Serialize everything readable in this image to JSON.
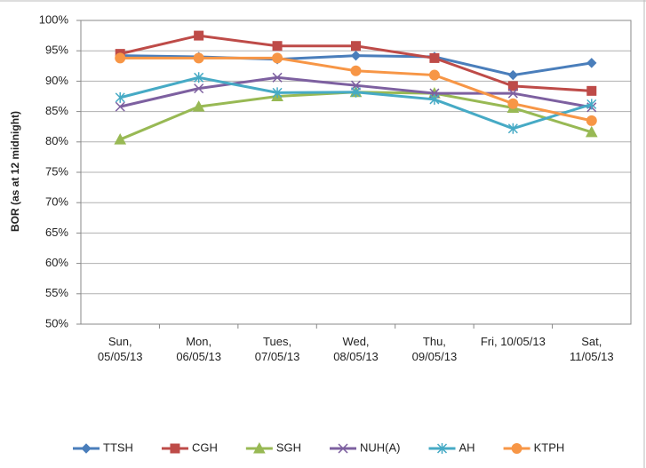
{
  "chart_data": {
    "type": "line",
    "y_label": "BOR (as at 12 midnight)",
    "categories": [
      "Sun, 05/05/13",
      "Mon, 06/05/13",
      "Tues, 07/05/13",
      "Wed, 08/05/13",
      "Thu, 09/05/13",
      "Fri, 10/05/13",
      "Sat, 11/05/13"
    ],
    "ylim": [
      50,
      100
    ],
    "yticks": [
      {
        "value": 50,
        "label": "50%"
      },
      {
        "value": 55,
        "label": "55%"
      },
      {
        "value": 60,
        "label": "60%"
      },
      {
        "value": 65,
        "label": "65%"
      },
      {
        "value": 70,
        "label": "70%"
      },
      {
        "value": 75,
        "label": "75%"
      },
      {
        "value": 80,
        "label": "80%"
      },
      {
        "value": 85,
        "label": "85%"
      },
      {
        "value": 90,
        "label": "90%"
      },
      {
        "value": 95,
        "label": "95%"
      },
      {
        "value": 100,
        "label": "100%"
      }
    ],
    "grid": true,
    "legend": "bottom",
    "series": [
      {
        "name": "TTSH",
        "color": "#4a7ebb",
        "marker": "diamond",
        "values": [
          94.2,
          94,
          93.6,
          94.2,
          94,
          91,
          93
        ]
      },
      {
        "name": "CGH",
        "color": "#be4b48",
        "marker": "square",
        "values": [
          94.5,
          97.5,
          95.8,
          95.8,
          93.8,
          89.2,
          88.4
        ]
      },
      {
        "name": "SGH",
        "color": "#98b954",
        "marker": "triangle",
        "values": [
          80.4,
          85.8,
          87.5,
          88.2,
          88,
          85.6,
          81.6
        ]
      },
      {
        "name": "NUH(A)",
        "color": "#7d60a0",
        "marker": "x",
        "values": [
          85.8,
          88.8,
          90.6,
          89.3,
          88,
          88,
          85.7
        ]
      },
      {
        "name": "AH",
        "color": "#46aac5",
        "marker": "star",
        "values": [
          87.3,
          90.6,
          88.1,
          88.2,
          87,
          82.2,
          86.2
        ]
      },
      {
        "name": "KTPH",
        "color": "#f79646",
        "marker": "circle",
        "values": [
          93.8,
          93.8,
          93.8,
          91.7,
          91,
          86.3,
          83.5
        ]
      }
    ]
  }
}
